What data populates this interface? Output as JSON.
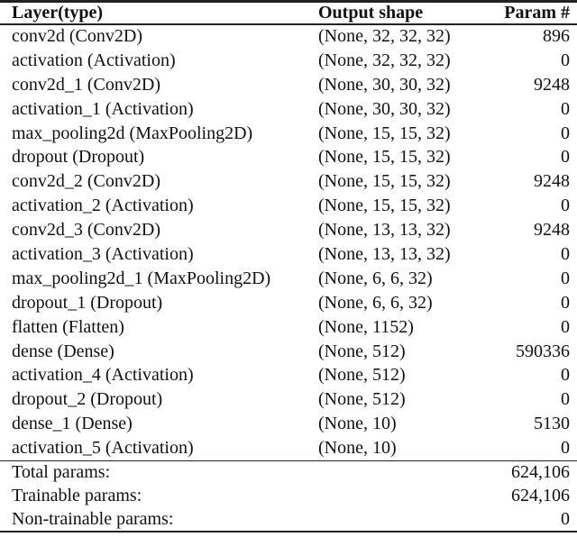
{
  "table": {
    "columns": {
      "layer": "Layer(type)",
      "shape": "Output shape",
      "params": "Param #"
    },
    "rows": [
      {
        "layer": "conv2d (Conv2D)",
        "shape": "(None, 32, 32, 32)",
        "params": "896"
      },
      {
        "layer": "activation (Activation)",
        "shape": "(None, 32, 32, 32)",
        "params": "0"
      },
      {
        "layer": "conv2d_1 (Conv2D)",
        "shape": "(None, 30, 30, 32)",
        "params": "9248"
      },
      {
        "layer": "activation_1 (Activation)",
        "shape": "(None, 30, 30, 32)",
        "params": "0"
      },
      {
        "layer": "max_pooling2d (MaxPooling2D)",
        "shape": "(None, 15, 15, 32)",
        "params": "0"
      },
      {
        "layer": "dropout (Dropout)",
        "shape": "(None, 15, 15, 32)",
        "params": "0"
      },
      {
        "layer": "conv2d_2 (Conv2D)",
        "shape": "(None, 15, 15, 32)",
        "params": "9248"
      },
      {
        "layer": "activation_2 (Activation)",
        "shape": "(None, 15, 15, 32)",
        "params": "0"
      },
      {
        "layer": "conv2d_3 (Conv2D)",
        "shape": "(None, 13, 13, 32)",
        "params": "9248"
      },
      {
        "layer": "activation_3 (Activation)",
        "shape": "(None, 13, 13, 32)",
        "params": "0"
      },
      {
        "layer": "max_pooling2d_1 (MaxPooling2D)",
        "shape": "(None, 6, 6, 32)",
        "params": "0"
      },
      {
        "layer": "dropout_1 (Dropout)",
        "shape": "(None, 6, 6, 32)",
        "params": "0"
      },
      {
        "layer": "flatten (Flatten)",
        "shape": "(None, 1152)",
        "params": "0"
      },
      {
        "layer": "dense (Dense)",
        "shape": "(None, 512)",
        "params": "590336"
      },
      {
        "layer": "activation_4 (Activation)",
        "shape": "(None, 512)",
        "params": "0"
      },
      {
        "layer": "dropout_2 (Dropout)",
        "shape": "(None, 512)",
        "params": "0"
      },
      {
        "layer": "dense_1 (Dense)",
        "shape": "(None, 10)",
        "params": "5130"
      },
      {
        "layer": "activation_5 (Activation)",
        "shape": "(None, 10)",
        "params": "0"
      }
    ],
    "footer": [
      {
        "label": "Total params:",
        "value": "624,106"
      },
      {
        "label": "Trainable params:",
        "value": "624,106"
      },
      {
        "label": "Non-trainable params:",
        "value": "0"
      }
    ]
  },
  "colors": {
    "background": "#ffffff",
    "text": "#111111",
    "rule": "#222222"
  }
}
